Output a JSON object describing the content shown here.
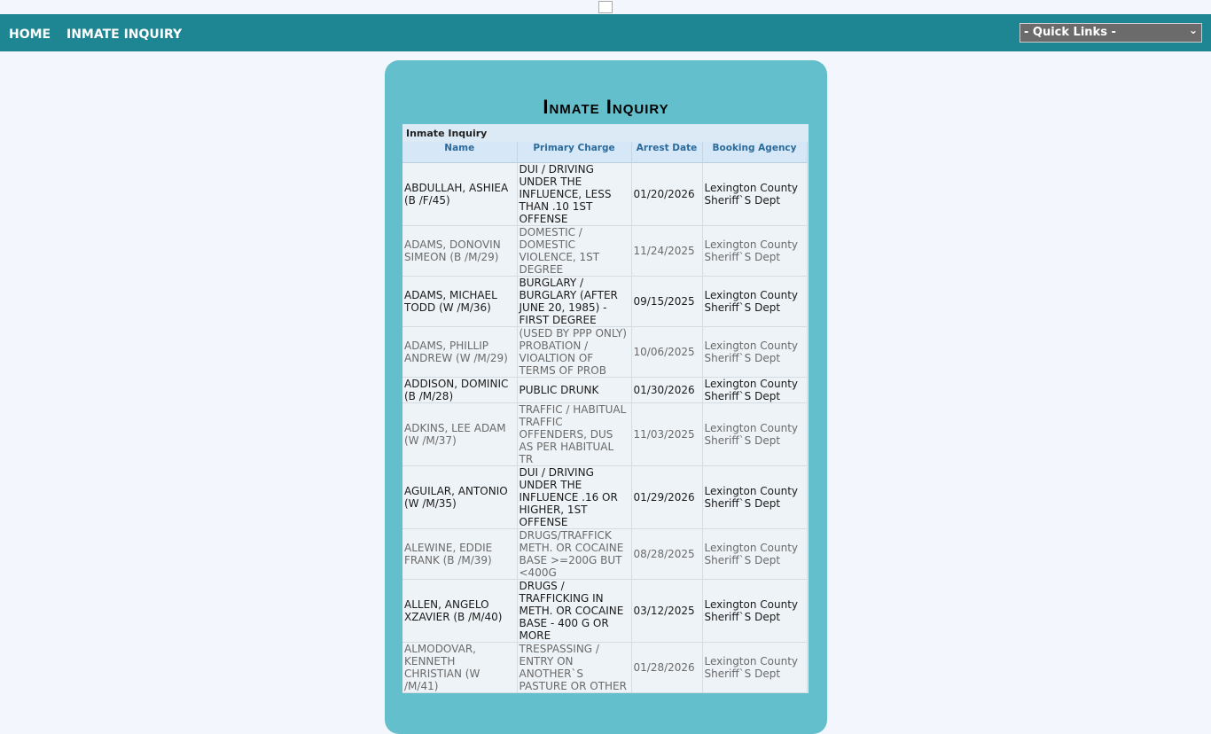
{
  "nav": {
    "home": "HOME",
    "inquiry": "INMATE INQUIRY",
    "quick_links": "- Quick Links -"
  },
  "page": {
    "title": "Inmate Inquiry",
    "caption": "Inmate Inquiry"
  },
  "table": {
    "headers": [
      "Name",
      "Primary Charge",
      "Arrest Date",
      "Booking Agency"
    ],
    "rows": [
      [
        "ABDULLAH, ASHIEA (B /F/45)",
        "DUI / DRIVING UNDER THE INFLUENCE, LESS THAN .10 1ST OFFENSE",
        "01/20/2026",
        "Lexington County Sheriff`S Dept"
      ],
      [
        "ADAMS, DONOVIN SIMEON (B /M/29)",
        "DOMESTIC / DOMESTIC VIOLENCE, 1ST DEGREE",
        "11/24/2025",
        "Lexington County Sheriff`S Dept"
      ],
      [
        "ADAMS, MICHAEL TODD (W /M/36)",
        "BURGLARY / BURGLARY (AFTER JUNE 20, 1985) - FIRST DEGREE",
        "09/15/2025",
        "Lexington County Sheriff`S Dept"
      ],
      [
        "ADAMS, PHILLIP ANDREW (W /M/29)",
        "(USED BY PPP ONLY) PROBATION / VIOALTION OF TERMS OF PROB",
        "10/06/2025",
        "Lexington County Sheriff`S Dept"
      ],
      [
        "ADDISON, DOMINIC (B /M/28)",
        "PUBLIC DRUNK",
        "01/30/2026",
        "Lexington County Sheriff`S Dept"
      ],
      [
        "ADKINS, LEE ADAM (W /M/37)",
        "TRAFFIC / HABITUAL TRAFFIC OFFENDERS, DUS AS PER HABITUAL TR",
        "11/03/2025",
        "Lexington County Sheriff`S Dept"
      ],
      [
        "AGUILAR, ANTONIO (W /M/35)",
        "DUI / DRIVING UNDER THE INFLUENCE .16 OR HIGHER, 1ST OFFENSE",
        "01/29/2026",
        "Lexington County Sheriff`S Dept"
      ],
      [
        "ALEWINE, EDDIE FRANK (B /M/39)",
        "DRUGS/TRAFFICK METH. OR COCAINE BASE >=200G BUT <400G",
        "08/28/2025",
        "Lexington County Sheriff`S Dept"
      ],
      [
        "ALLEN, ANGELO XZAVIER (B /M/40)",
        "DRUGS / TRAFFICKING IN METH. OR COCAINE BASE - 400 G OR MORE",
        "03/12/2025",
        "Lexington County Sheriff`S Dept"
      ],
      [
        "ALMODOVAR, KENNETH CHRISTIAN (W /M/41)",
        "TRESPASSING / ENTRY ON ANOTHER`S PASTURE OR OTHER",
        "01/28/2026",
        "Lexington County Sheriff`S Dept"
      ]
    ]
  }
}
